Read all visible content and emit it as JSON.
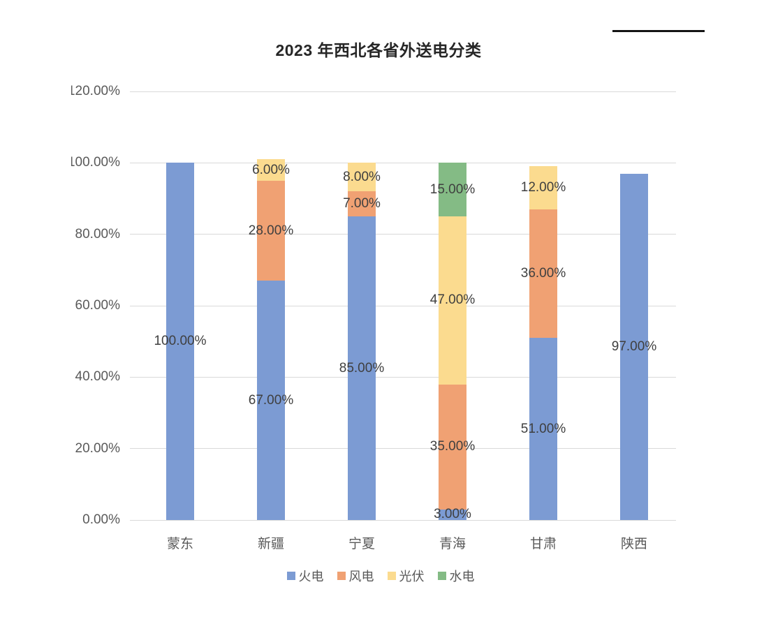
{
  "chart_data": {
    "type": "bar",
    "subtype": "stacked",
    "title": "2023 年西北各省外送电分类",
    "categories": [
      "蒙东",
      "新疆",
      "宁夏",
      "青海",
      "甘肃",
      "陕西"
    ],
    "series": [
      {
        "name": "火电",
        "color": "#7c9bd3",
        "values": [
          100,
          67,
          85,
          3,
          51,
          97
        ]
      },
      {
        "name": "风电",
        "color": "#f0a173",
        "values": [
          0,
          28,
          7,
          35,
          36,
          0
        ]
      },
      {
        "name": "光伏",
        "color": "#fbdb8f",
        "values": [
          0,
          6,
          8,
          47,
          12,
          0
        ]
      },
      {
        "name": "水电",
        "color": "#84bb85",
        "values": [
          0,
          0,
          0,
          15,
          0,
          0
        ]
      }
    ],
    "ylim": [
      0,
      120
    ],
    "ytick_step": 20,
    "ytick_decimals": 2,
    "ytick_suffix": "%",
    "data_label_decimals": 2,
    "data_label_suffix": "%",
    "grid": true,
    "gridline_color": "#d9d9d9",
    "axis_label_color": "#595959",
    "data_label_color": "#3f3f3f",
    "legend_position": "bottom",
    "legend": [
      "火电",
      "风电",
      "光伏",
      "水电"
    ]
  }
}
